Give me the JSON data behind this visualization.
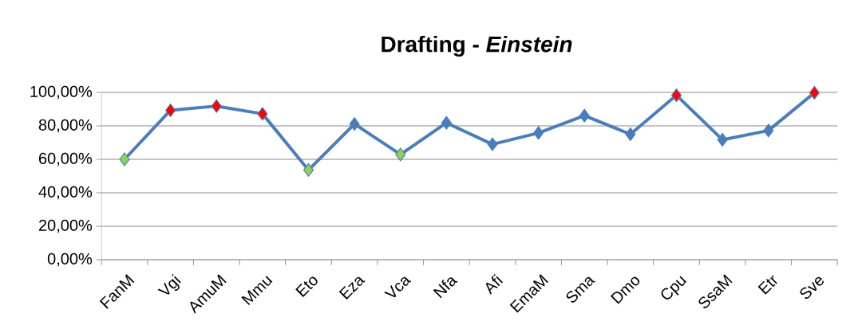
{
  "chart_data": {
    "type": "line",
    "title": "Drafting - *Einstein*",
    "categories": [
      "FanM",
      "Vgi",
      "AmuM",
      "Mmu",
      "Eto",
      "Eza",
      "Vca",
      "Nfa",
      "Afi",
      "EmaM",
      "Sma",
      "Dmo",
      "Cpu",
      "SsaM",
      "Etr",
      "Sve"
    ],
    "series": [
      {
        "color": "#4a7ebb",
        "values": [
          60.0,
          89.3,
          91.8,
          87.2,
          53.6,
          81.1,
          62.9,
          81.8,
          69.0,
          75.8,
          86.1,
          75.0,
          98.3,
          71.7,
          77.2,
          99.8
        ],
        "colors": [
          "#92d050",
          "#ff0000",
          "#ff0000",
          "#ff0000",
          "#92d050",
          "#4a7ebb",
          "#92d050",
          "#4a7ebb",
          "#4a7ebb",
          "#4a7ebb",
          "#4a7ebb",
          "#4a7ebb",
          "#ff0000",
          "#4a7ebb",
          "#4a7ebb",
          "#ff0000"
        ]
      }
    ],
    "ylim": [
      0,
      100
    ],
    "yticks": [
      {
        "value": 0,
        "label": "0,00%"
      },
      {
        "value": 20,
        "label": "20,00%"
      },
      {
        "value": 40,
        "label": "40,00%"
      },
      {
        "value": 60,
        "label": "60,00%"
      },
      {
        "value": 80,
        "label": "80,00%"
      },
      {
        "value": 100,
        "label": "100,00%"
      }
    ],
    "grid": "y",
    "marker": "diamond",
    "line_style": "solid"
  }
}
